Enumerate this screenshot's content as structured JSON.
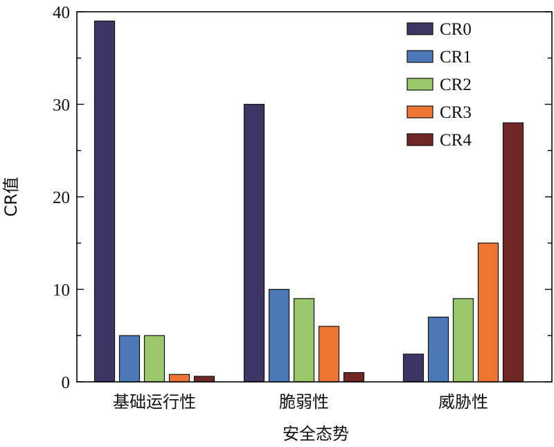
{
  "chart_data": {
    "type": "bar",
    "title": "",
    "xlabel": "安全态势",
    "ylabel": "CR值",
    "ylim": [
      0,
      40
    ],
    "yticks": [
      0,
      10,
      20,
      30,
      40
    ],
    "legend_position": "top-right",
    "categories": [
      "基础运行性",
      "脆弱性",
      "威胁性"
    ],
    "series": [
      {
        "name": "CR0",
        "color": "#3f3564",
        "values": [
          39,
          30,
          3
        ]
      },
      {
        "name": "CR1",
        "color": "#4b78b7",
        "values": [
          5,
          10,
          7
        ]
      },
      {
        "name": "CR2",
        "color": "#99c76a",
        "values": [
          5,
          9,
          9
        ]
      },
      {
        "name": "CR3",
        "color": "#ee7433",
        "values": [
          0.8,
          6,
          15
        ]
      },
      {
        "name": "CR4",
        "color": "#702725",
        "values": [
          0.6,
          1,
          28
        ]
      }
    ]
  }
}
